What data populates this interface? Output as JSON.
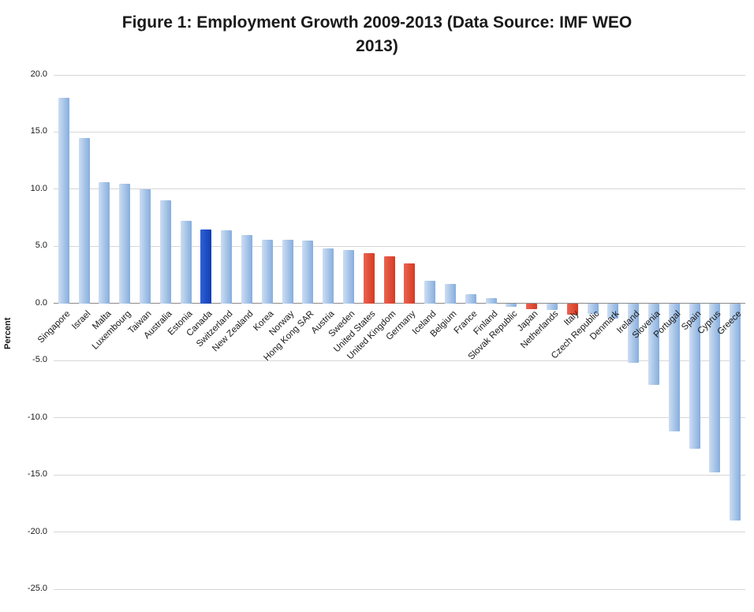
{
  "header": {
    "title_lines": [
      "Figure 1: Employment Growth 2009-2013 (Data Source: IMF WEO",
      "2013)"
    ]
  },
  "axis": {
    "ylabel": "Percent",
    "yticks": [
      "20.0",
      "15.0",
      "10.0",
      "5.0",
      "0.0",
      "-5.0",
      "-10.0",
      "-15.0",
      "-20.0",
      "-25.0"
    ]
  },
  "chart_data": {
    "type": "bar",
    "title": "Figure 1: Employment Growth 2009-2013 (Data Source: IMF WEO 2013)",
    "xlabel": "",
    "ylabel": "Percent",
    "ylim": [
      -25,
      20
    ],
    "ytick_step": 5,
    "grid": true,
    "legend": "none",
    "categories": [
      "Singapore",
      "Israel",
      "Malta",
      "Luxembourg",
      "Taiwan",
      "Australia",
      "Estonia",
      "Canada",
      "Switzerland",
      "New Zealand",
      "Korea",
      "Norway",
      "Hong Kong SAR",
      "Austria",
      "Sweden",
      "United States",
      "United Kingdom",
      "Germany",
      "Iceland",
      "Belgium",
      "France",
      "Finland",
      "Slovak Republic",
      "Japan",
      "Netherlands",
      "Italy",
      "Czech Republic",
      "Denmark",
      "Ireland",
      "Slovenia",
      "Portugal",
      "Spain",
      "Cyprus",
      "Greece"
    ],
    "values": [
      18.0,
      14.5,
      10.6,
      10.5,
      10.0,
      9.0,
      7.2,
      6.5,
      6.4,
      6.0,
      5.6,
      5.6,
      5.5,
      4.8,
      4.7,
      4.4,
      4.1,
      3.5,
      2.0,
      1.7,
      0.8,
      0.5,
      -0.3,
      -0.5,
      -0.6,
      -1.0,
      -0.9,
      -1.3,
      -5.2,
      -7.1,
      -11.2,
      -12.7,
      -14.8,
      -19.0
    ],
    "bar_colors": [
      "blue",
      "blue",
      "blue",
      "blue",
      "blue",
      "blue",
      "blue",
      "navy",
      "blue",
      "blue",
      "blue",
      "blue",
      "blue",
      "blue",
      "blue",
      "red",
      "red",
      "red",
      "blue",
      "blue",
      "blue",
      "blue",
      "blue",
      "red",
      "blue",
      "red",
      "blue",
      "blue",
      "blue",
      "blue",
      "blue",
      "blue",
      "blue",
      "blue"
    ],
    "colors": {
      "bar_light": "#ccddf2",
      "bar_dark": "#86aede",
      "canada_light": "#2e60d6",
      "canada_dark": "#123eb5",
      "red_light": "#ea6450",
      "red_dark": "#d63a23",
      "gridline": "#d6d6d6",
      "zero_line": "#8a8a8a",
      "text": "#1a1a1a"
    }
  }
}
